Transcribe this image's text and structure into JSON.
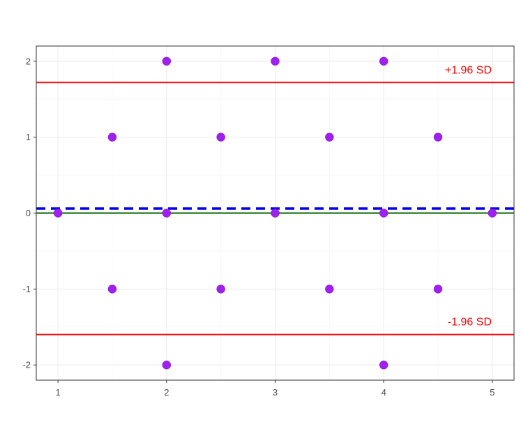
{
  "chart_data": {
    "type": "scatter",
    "title": "",
    "xlabel": "",
    "ylabel": "",
    "xlim": [
      0.8,
      5.2
    ],
    "ylim": [
      -2.2,
      2.2
    ],
    "x_ticks": [
      1,
      2,
      3,
      4,
      5
    ],
    "y_ticks": [
      -2,
      -1,
      0,
      1,
      2
    ],
    "x_tick_labels": [
      "1",
      "2",
      "3",
      "4",
      "5"
    ],
    "y_tick_labels": [
      "-2",
      "-1",
      "0",
      "1",
      "2"
    ],
    "grid": true,
    "points": [
      {
        "x": 1,
        "y": 0
      },
      {
        "x": 1.5,
        "y": 1
      },
      {
        "x": 1.5,
        "y": -1
      },
      {
        "x": 2,
        "y": 2
      },
      {
        "x": 2,
        "y": 0
      },
      {
        "x": 2,
        "y": -2
      },
      {
        "x": 2.5,
        "y": 1
      },
      {
        "x": 2.5,
        "y": -1
      },
      {
        "x": 3,
        "y": 2
      },
      {
        "x": 3,
        "y": 0
      },
      {
        "x": 3.5,
        "y": 1
      },
      {
        "x": 3.5,
        "y": -1
      },
      {
        "x": 4,
        "y": 2
      },
      {
        "x": 4,
        "y": 0
      },
      {
        "x": 4,
        "y": -2
      },
      {
        "x": 4.5,
        "y": 1
      },
      {
        "x": 4.5,
        "y": -1
      },
      {
        "x": 5,
        "y": 0
      }
    ],
    "reference_lines": [
      {
        "kind": "upper-limit",
        "y": 1.72,
        "color": "#ee1111",
        "style": "solid",
        "label": "+1.96 SD"
      },
      {
        "kind": "lower-limit",
        "y": -1.6,
        "color": "#ee1111",
        "style": "solid",
        "label": "-1.96 SD"
      },
      {
        "kind": "mean-difference",
        "y": 0.06,
        "color": "#0000ee",
        "style": "dashed",
        "label": ""
      },
      {
        "kind": "zero-line",
        "y": 0,
        "color": "#006400",
        "style": "solid",
        "label": ""
      }
    ],
    "point_color": "#a020f0",
    "label_color": "#ee0000"
  }
}
